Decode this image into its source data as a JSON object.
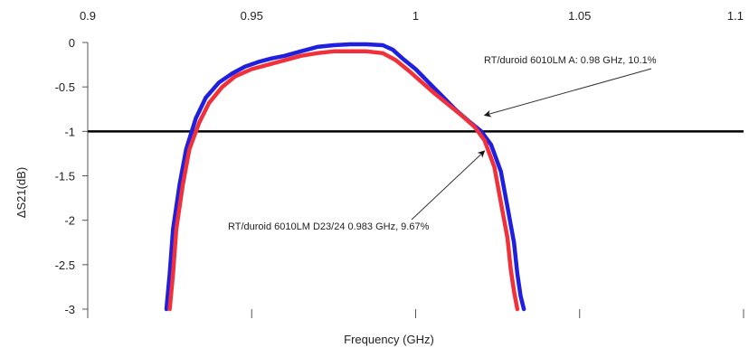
{
  "chart_data": {
    "type": "line",
    "title": "",
    "xlabel": "Frequency (GHz)",
    "ylabel": "ΔS21(dB)",
    "xlim": [
      0.9,
      1.1
    ],
    "ylim": [
      -3,
      0
    ],
    "x_ticks": [
      0.9,
      0.95,
      1,
      1.05,
      1.1
    ],
    "x_tick_labels": [
      "0.9",
      "0.95",
      "1",
      "1.05",
      "1.1"
    ],
    "y_ticks": [
      0,
      -0.5,
      -1,
      -1.5,
      -2,
      -2.5,
      -3
    ],
    "y_tick_labels": [
      "0",
      "-0.5",
      "-1",
      "-1.5",
      "-2",
      "-2.5",
      "-3"
    ],
    "x_axis_position": "top",
    "reference_line": {
      "y": -1,
      "color": "#000000"
    },
    "series": [
      {
        "color": "#1f1fe0",
        "x": [
          0.924,
          0.925,
          0.926,
          0.928,
          0.93,
          0.933,
          0.936,
          0.94,
          0.944,
          0.948,
          0.952,
          0.956,
          0.96,
          0.965,
          0.97,
          0.975,
          0.98,
          0.985,
          0.99,
          0.993,
          0.996,
          1.0,
          1.004,
          1.008,
          1.012,
          1.016,
          1.02,
          1.023,
          1.026,
          1.028,
          1.03,
          1.031,
          1.032,
          1.033
        ],
        "y": [
          -3.0,
          -2.6,
          -2.1,
          -1.6,
          -1.2,
          -0.85,
          -0.62,
          -0.45,
          -0.35,
          -0.27,
          -0.22,
          -0.18,
          -0.15,
          -0.1,
          -0.05,
          -0.03,
          -0.02,
          -0.02,
          -0.03,
          -0.08,
          -0.18,
          -0.3,
          -0.45,
          -0.6,
          -0.75,
          -0.88,
          -1.0,
          -1.15,
          -1.45,
          -1.85,
          -2.25,
          -2.6,
          -2.85,
          -3.0
        ]
      },
      {
        "color": "#f0303a",
        "x": [
          0.925,
          0.926,
          0.927,
          0.929,
          0.931,
          0.934,
          0.937,
          0.941,
          0.945,
          0.95,
          0.955,
          0.96,
          0.965,
          0.97,
          0.975,
          0.98,
          0.985,
          0.99,
          0.994,
          0.998,
          1.002,
          1.006,
          1.01,
          1.014,
          1.018,
          1.021,
          1.024,
          1.026,
          1.028,
          1.029,
          1.03,
          1.031
        ],
        "y": [
          -3.0,
          -2.6,
          -2.1,
          -1.6,
          -1.2,
          -0.9,
          -0.68,
          -0.5,
          -0.38,
          -0.3,
          -0.25,
          -0.2,
          -0.15,
          -0.12,
          -0.1,
          -0.1,
          -0.1,
          -0.12,
          -0.2,
          -0.32,
          -0.45,
          -0.58,
          -0.7,
          -0.82,
          -0.95,
          -1.1,
          -1.4,
          -1.8,
          -2.2,
          -2.55,
          -2.8,
          -3.0
        ]
      }
    ],
    "annotations": [
      {
        "text": "RT/duroid 6010LM A: 0.98 GHz, 10.1%",
        "anchor": "upper-right",
        "points_to": {
          "x": 1.021,
          "y": -0.82
        }
      },
      {
        "text": "RT/duroid 6010LM D23/24 0.983 GHz, 9.67%",
        "anchor": "lower-middle",
        "points_to": {
          "x": 1.021,
          "y": -1.22
        }
      }
    ]
  }
}
